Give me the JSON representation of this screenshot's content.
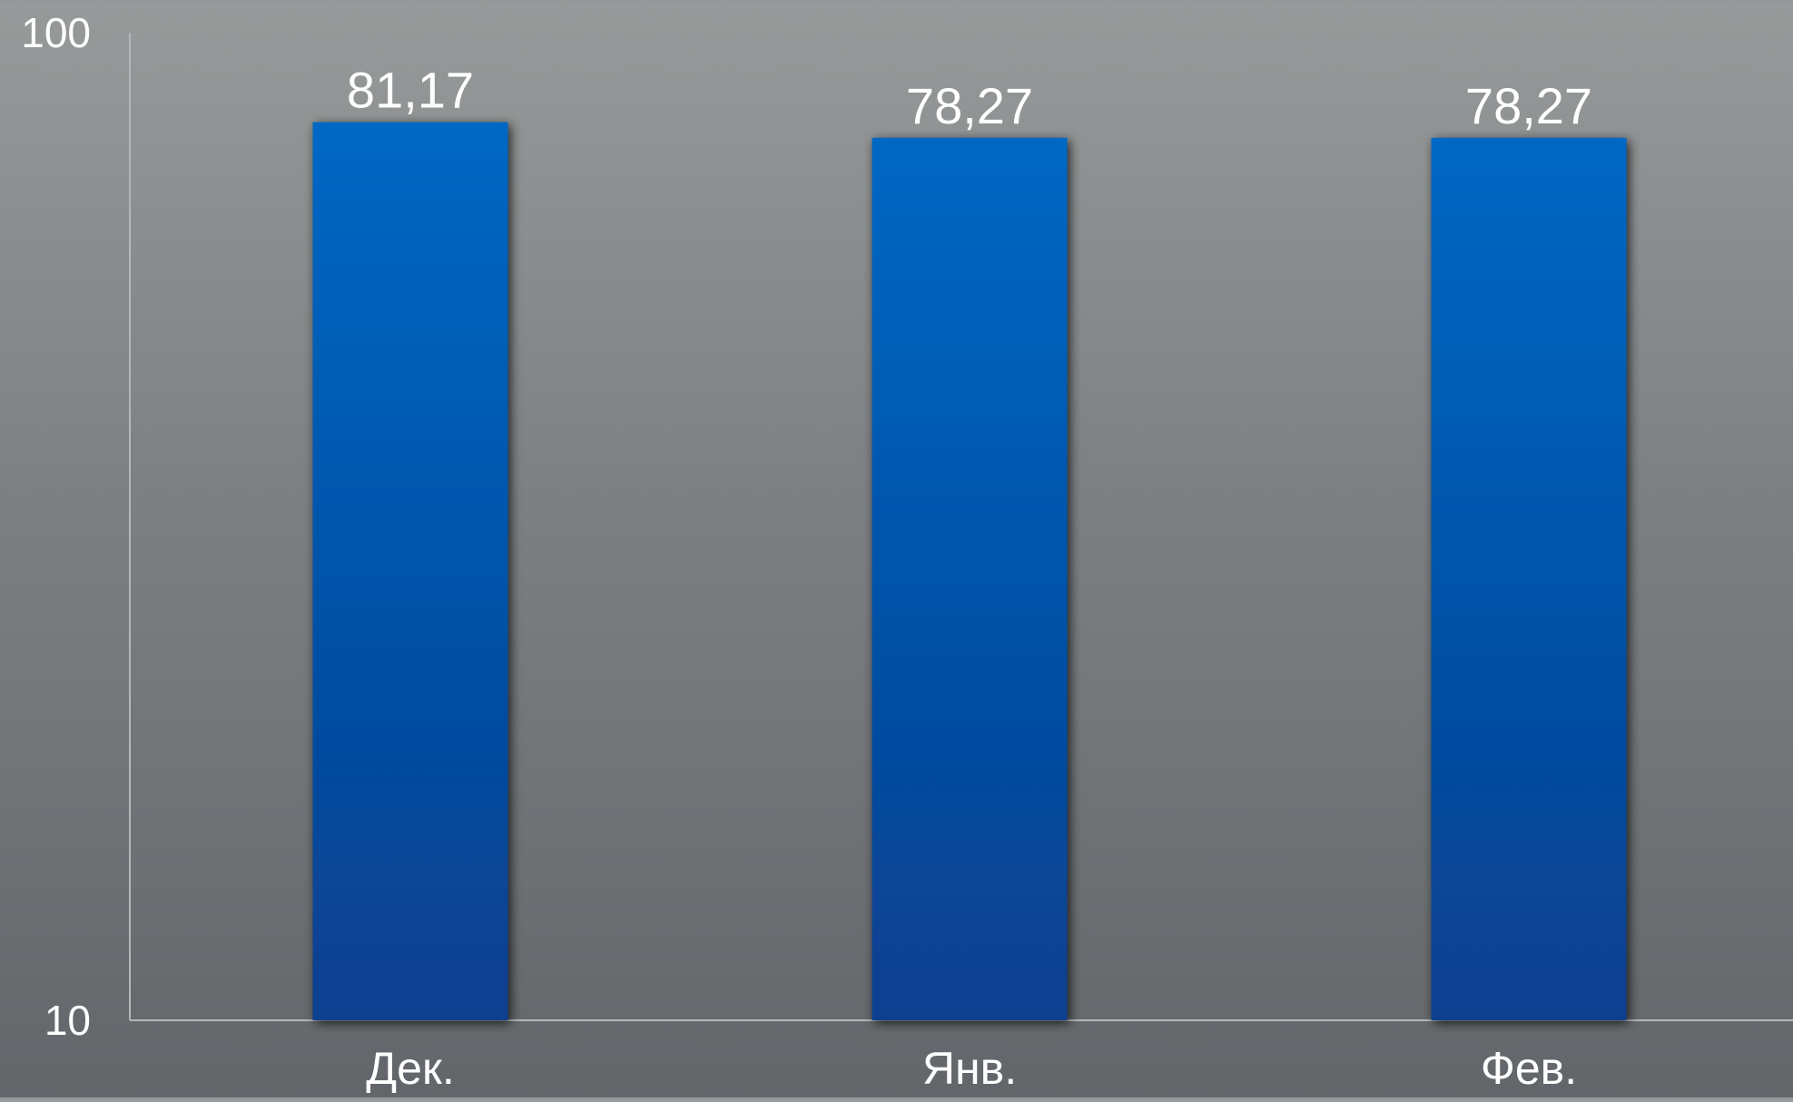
{
  "chart_data": {
    "type": "bar",
    "title": "",
    "xlabel": "",
    "ylabel": "",
    "scale": "log",
    "categories": [
      "Дек.",
      "Янв.",
      "Фев."
    ],
    "values": [
      81.17,
      78.27,
      78.27
    ],
    "value_labels": [
      "81,17",
      "78,27",
      "78,27"
    ],
    "ylim": [
      10,
      100
    ],
    "y_ticks": [
      {
        "value": 10,
        "label": "10"
      },
      {
        "value": 100,
        "label": "100"
      }
    ],
    "grid": false,
    "legend": "none",
    "colors": {
      "bar_top": "#0168c4",
      "bar_bottom": "#083f8f",
      "text": "#ffffff",
      "axis": "#b4b7b9"
    }
  }
}
